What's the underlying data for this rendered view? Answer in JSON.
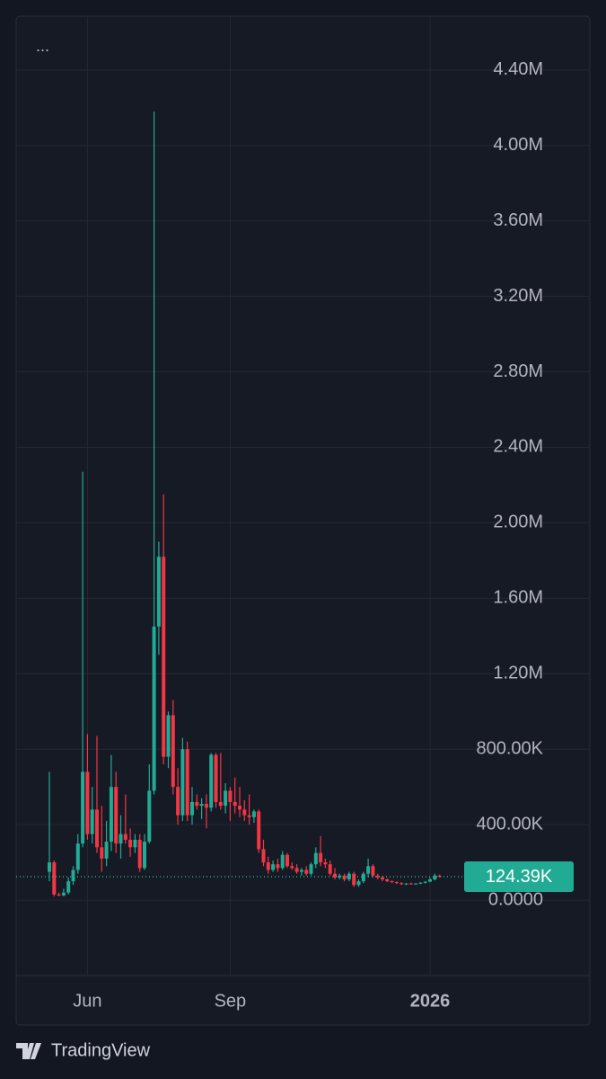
{
  "chart_data": {
    "type": "candlestick",
    "menu": "...",
    "brand": "TradingView",
    "up_color": "#22ab94",
    "down_color": "#f23645",
    "grid": true,
    "ylim": [
      -400000,
      4685000
    ],
    "yticks": [
      {
        "value": 0,
        "label": "0.0000"
      },
      {
        "value": 400000,
        "label": "400.00K"
      },
      {
        "value": 800000,
        "label": "800.00K"
      },
      {
        "value": 1200000,
        "label": "1.20M"
      },
      {
        "value": 1600000,
        "label": "1.60M"
      },
      {
        "value": 2000000,
        "label": "2.00M"
      },
      {
        "value": 2400000,
        "label": "2.40M"
      },
      {
        "value": 2800000,
        "label": "2.80M"
      },
      {
        "value": 3200000,
        "label": "3.20M"
      },
      {
        "value": 3600000,
        "label": "3.60M"
      },
      {
        "value": 4000000,
        "label": "4.00M"
      },
      {
        "value": 4400000,
        "label": "4.40M"
      }
    ],
    "last_price": {
      "value": 124390,
      "label": "124.39K"
    },
    "categories": [
      null,
      null,
      null,
      null,
      null,
      null,
      null,
      null,
      "Jun",
      null,
      null,
      null,
      null,
      null,
      null,
      null,
      null,
      null,
      null,
      null,
      null,
      null,
      null,
      null,
      null,
      null,
      null,
      null,
      null,
      null,
      null,
      null,
      null,
      null,
      null,
      null,
      null,
      null,
      "Sep",
      null,
      null,
      null,
      null,
      null,
      null,
      null,
      null,
      null,
      null,
      null,
      null,
      null,
      null,
      null,
      null,
      null,
      null,
      null,
      null,
      null,
      null,
      null,
      null,
      null,
      null,
      null,
      null,
      null,
      null,
      null,
      null,
      null,
      null,
      null,
      null,
      null,
      null,
      null,
      null,
      null,
      "2026",
      null,
      null
    ],
    "open": [
      150000,
      200000,
      30000,
      25000,
      40000,
      100000,
      160000,
      300000,
      680000,
      350000,
      480000,
      280000,
      220000,
      310000,
      600000,
      300000,
      350000,
      320000,
      280000,
      320000,
      170000,
      310000,
      580000,
      1450000,
      1820000,
      760000,
      980000,
      600000,
      450000,
      800000,
      450000,
      520000,
      500000,
      510000,
      490000,
      770000,
      520000,
      500000,
      580000,
      520000,
      500000,
      480000,
      450000,
      440000,
      470000,
      270000,
      200000,
      160000,
      190000,
      170000,
      240000,
      180000,
      170000,
      150000,
      160000,
      140000,
      190000,
      250000,
      200000,
      190000,
      140000,
      120000,
      130000,
      110000,
      140000,
      80000,
      100000,
      140000,
      180000,
      130000,
      120000,
      110000,
      100000,
      95000,
      90000,
      85000,
      88000,
      85000,
      88000,
      92000,
      98000,
      110000,
      130000
    ],
    "high": [
      680000,
      210000,
      40000,
      60000,
      120000,
      180000,
      350000,
      2270000,
      880000,
      600000,
      870000,
      500000,
      420000,
      770000,
      680000,
      450000,
      560000,
      380000,
      350000,
      350000,
      350000,
      720000,
      4180000,
      1900000,
      2150000,
      1000000,
      1060000,
      700000,
      860000,
      840000,
      600000,
      560000,
      540000,
      560000,
      780000,
      780000,
      780000,
      620000,
      600000,
      650000,
      600000,
      530000,
      560000,
      480000,
      480000,
      320000,
      230000,
      210000,
      220000,
      260000,
      250000,
      200000,
      190000,
      170000,
      180000,
      200000,
      280000,
      340000,
      220000,
      210000,
      170000,
      140000,
      140000,
      150000,
      150000,
      110000,
      150000,
      220000,
      190000,
      140000,
      130000,
      115000,
      105000,
      100000,
      95000,
      90000,
      92000,
      90000,
      95000,
      100000,
      120000,
      140000,
      135000
    ],
    "low": [
      100000,
      20000,
      20000,
      20000,
      30000,
      80000,
      140000,
      280000,
      320000,
      300000,
      250000,
      150000,
      180000,
      260000,
      250000,
      220000,
      300000,
      230000,
      250000,
      150000,
      160000,
      300000,
      560000,
      1300000,
      720000,
      700000,
      560000,
      400000,
      420000,
      420000,
      400000,
      480000,
      430000,
      380000,
      470000,
      490000,
      480000,
      460000,
      420000,
      460000,
      440000,
      420000,
      400000,
      410000,
      250000,
      180000,
      140000,
      150000,
      150000,
      160000,
      170000,
      160000,
      140000,
      130000,
      130000,
      130000,
      170000,
      180000,
      170000,
      130000,
      110000,
      110000,
      100000,
      100000,
      70000,
      70000,
      90000,
      120000,
      120000,
      110000,
      100000,
      95000,
      90000,
      85000,
      80000,
      80000,
      82000,
      82000,
      85000,
      88000,
      95000,
      105000,
      120000
    ],
    "close": [
      200000,
      30000,
      25000,
      40000,
      100000,
      160000,
      300000,
      680000,
      350000,
      480000,
      280000,
      220000,
      310000,
      600000,
      300000,
      350000,
      320000,
      280000,
      320000,
      170000,
      310000,
      580000,
      1450000,
      1820000,
      760000,
      980000,
      600000,
      450000,
      800000,
      450000,
      520000,
      500000,
      510000,
      490000,
      770000,
      520000,
      500000,
      580000,
      520000,
      500000,
      480000,
      450000,
      440000,
      470000,
      270000,
      200000,
      160000,
      190000,
      170000,
      240000,
      180000,
      170000,
      150000,
      160000,
      140000,
      190000,
      250000,
      200000,
      190000,
      140000,
      120000,
      130000,
      110000,
      140000,
      80000,
      100000,
      140000,
      180000,
      130000,
      120000,
      110000,
      100000,
      95000,
      90000,
      85000,
      88000,
      85000,
      88000,
      92000,
      98000,
      110000,
      130000,
      124390
    ]
  }
}
